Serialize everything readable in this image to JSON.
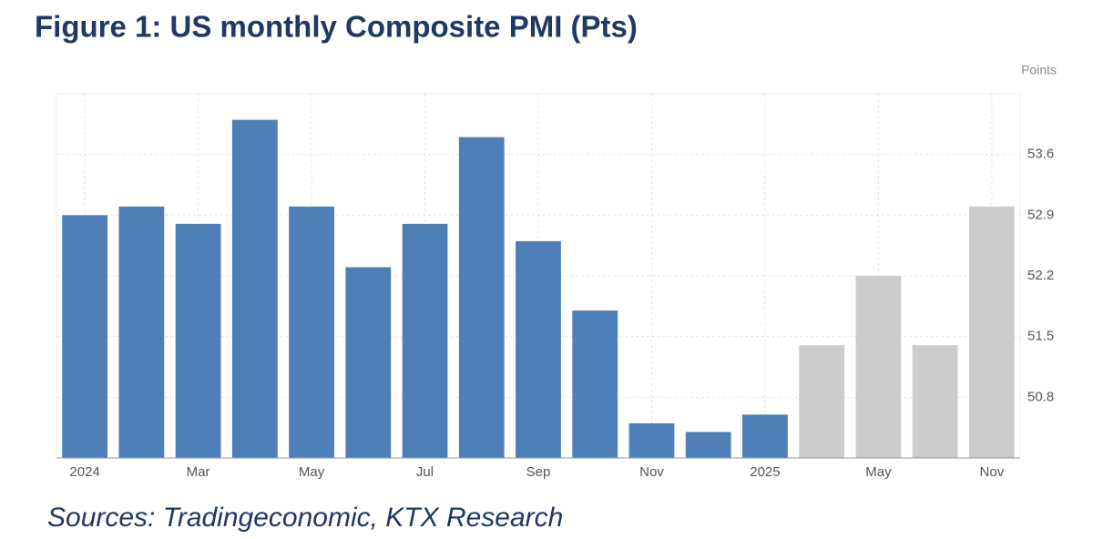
{
  "chart_data": {
    "type": "bar",
    "title": "Figure 1: US monthly Composite PMI (Pts)",
    "y_label": "Points",
    "source": "Sources: Tradingeconomic, KTX Research",
    "categories": [
      "2024",
      null,
      "Mar",
      null,
      "May",
      null,
      "Jul",
      null,
      "Sep",
      null,
      "Nov",
      null,
      "2025",
      null,
      "May",
      null,
      "Nov"
    ],
    "values": [
      52.9,
      53.0,
      52.8,
      54.0,
      53.0,
      52.3,
      52.8,
      53.8,
      52.6,
      51.8,
      50.5,
      50.4,
      50.6,
      51.4,
      52.2,
      51.4,
      53.0
    ],
    "colors": [
      "#4f7fb8",
      "#4f7fb8",
      "#4f7fb8",
      "#4f7fb8",
      "#4f7fb8",
      "#4f7fb8",
      "#4f7fb8",
      "#4f7fb8",
      "#4f7fb8",
      "#4f7fb8",
      "#4f7fb8",
      "#4f7fb8",
      "#4f7fb8",
      "#cccccc",
      "#cccccc",
      "#cccccc",
      "#cccccc"
    ],
    "ylim": [
      50.1,
      54.3
    ],
    "yticks": [
      50.8,
      51.5,
      52.2,
      52.9,
      53.6
    ],
    "grid": true
  }
}
